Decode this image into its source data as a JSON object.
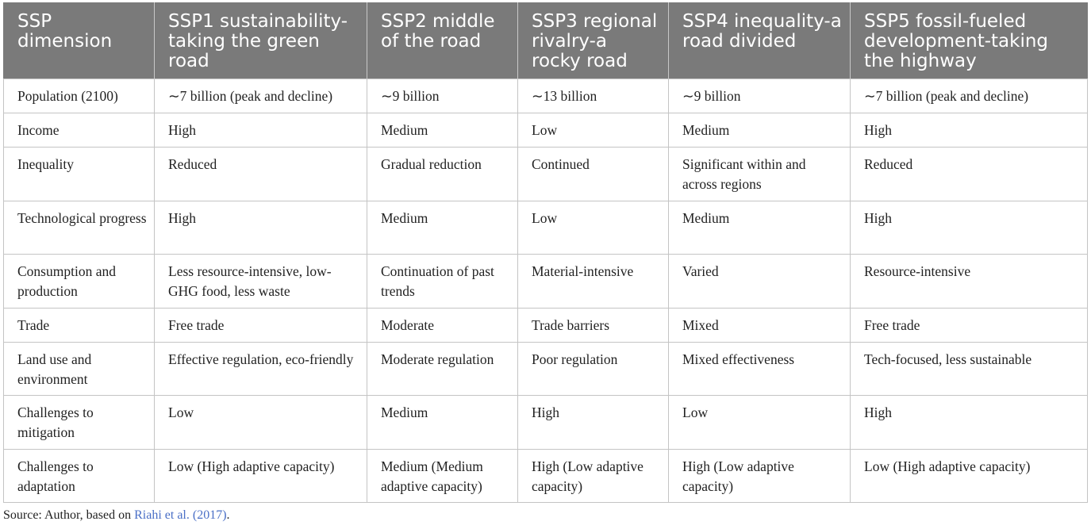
{
  "table": {
    "headers": [
      "SSP dimension",
      "SSP1 sustainability-taking the green road",
      "SSP2 middle of the road",
      "SSP3 regional rivalry-a rocky road",
      "SSP4 inequality-a road divided",
      "SSP5 fossil-fueled development-taking the highway"
    ],
    "rows": [
      [
        "Population (2100)",
        "∼7 billion (peak and decline)",
        "∼9 billion",
        "∼13 billion",
        "∼9 billion",
        "∼7 billion (peak and decline)"
      ],
      [
        "Income",
        "High",
        "Medium",
        "Low",
        "Medium",
        "High"
      ],
      [
        "Inequality",
        "Reduced",
        "Gradual reduction",
        "Continued",
        "Significant within and across regions",
        "Reduced"
      ],
      [
        "Technological progress",
        "High",
        "Medium",
        "Low",
        "Medium",
        "High"
      ],
      [
        "Consumption and production",
        "Less resource-intensive, low-GHG food, less waste",
        "Continuation of past trends",
        "Material-intensive",
        "Varied",
        "Resource-intensive"
      ],
      [
        "Trade",
        "Free trade",
        "Moderate",
        "Trade barriers",
        "Mixed",
        "Free trade"
      ],
      [
        "Land use and environment",
        "Effective regulation, eco-friendly",
        "Moderate regulation",
        "Poor regulation",
        "Mixed effectiveness",
        "Tech-focused, less sustainable"
      ],
      [
        "Challenges to mitigation",
        "Low",
        "Medium",
        "High",
        "Low",
        "High"
      ],
      [
        "Challenges to adaptation",
        "Low (High adaptive capacity)",
        "Medium (Medium adaptive capacity)",
        "High (Low adaptive capacity)",
        "High (Low adaptive capacity)",
        "Low (High adaptive capacity)"
      ]
    ]
  },
  "source": {
    "prefix": "Source: Author, based on ",
    "link_text": "Riahi et al. (2017)",
    "suffix": "."
  }
}
